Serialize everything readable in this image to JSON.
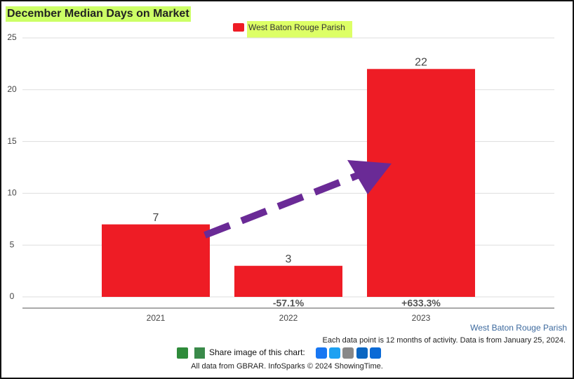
{
  "chart_data": {
    "type": "bar",
    "title": "December Median Days on Market",
    "categories": [
      "2021",
      "2022",
      "2023"
    ],
    "series": [
      {
        "name": "West Baton Rouge Parish",
        "color": "#ee1c25",
        "values": [
          7,
          3,
          22
        ]
      }
    ],
    "change_labels": [
      null,
      "-57.1%",
      "+633.3%"
    ],
    "ylim": [
      0,
      25
    ],
    "yticks": [
      0,
      5,
      10,
      15,
      20,
      25
    ],
    "grid": true,
    "legend": "top",
    "area_label": "West Baton Rouge Parish",
    "note": "Each data point is 12 months of activity. Data is from January 25, 2024.",
    "share_label": "Share image of this chart:",
    "credits": "All data from GBRAR. InfoSparks © 2024 ShowingTime."
  }
}
